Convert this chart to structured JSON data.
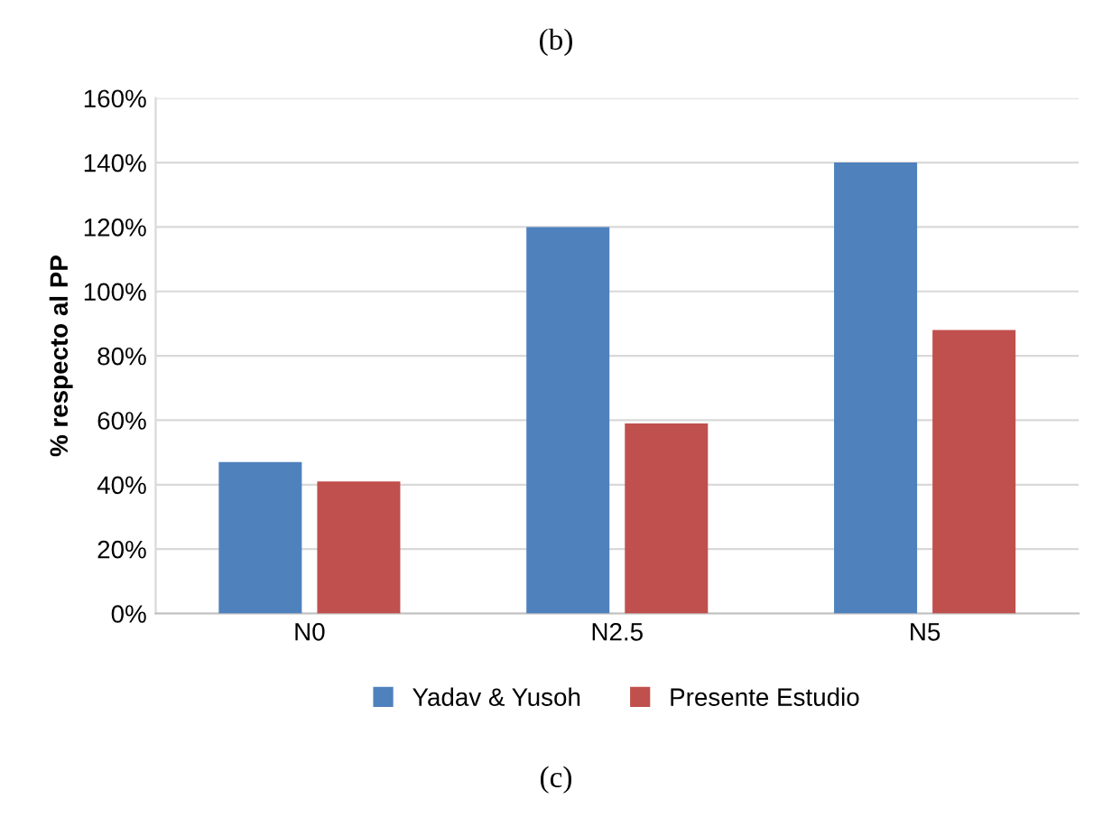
{
  "chart_data": {
    "type": "bar",
    "title": "(b)",
    "ylabel": "% respecto al PP",
    "categories": [
      "N0",
      "N2.5",
      "N5"
    ],
    "series": [
      {
        "name": "Yadav & Yusoh",
        "color": "#4f81bd",
        "values": [
          47,
          120,
          140
        ]
      },
      {
        "name": "Presente Estudio",
        "color": "#c0504d",
        "values": [
          41,
          59,
          88
        ]
      }
    ],
    "ylim": [
      0,
      160
    ],
    "yticks": [
      {
        "value": 0,
        "label": "0%"
      },
      {
        "value": 20,
        "label": "20%"
      },
      {
        "value": 40,
        "label": "40%"
      },
      {
        "value": 60,
        "label": "60%"
      },
      {
        "value": 80,
        "label": "80%"
      },
      {
        "value": 100,
        "label": "100%"
      },
      {
        "value": 120,
        "label": "120%"
      },
      {
        "value": 140,
        "label": "140%"
      },
      {
        "value": 160,
        "label": "160%"
      }
    ],
    "grid": "y",
    "legend": "bottom",
    "annotations": [
      "(c)"
    ]
  }
}
